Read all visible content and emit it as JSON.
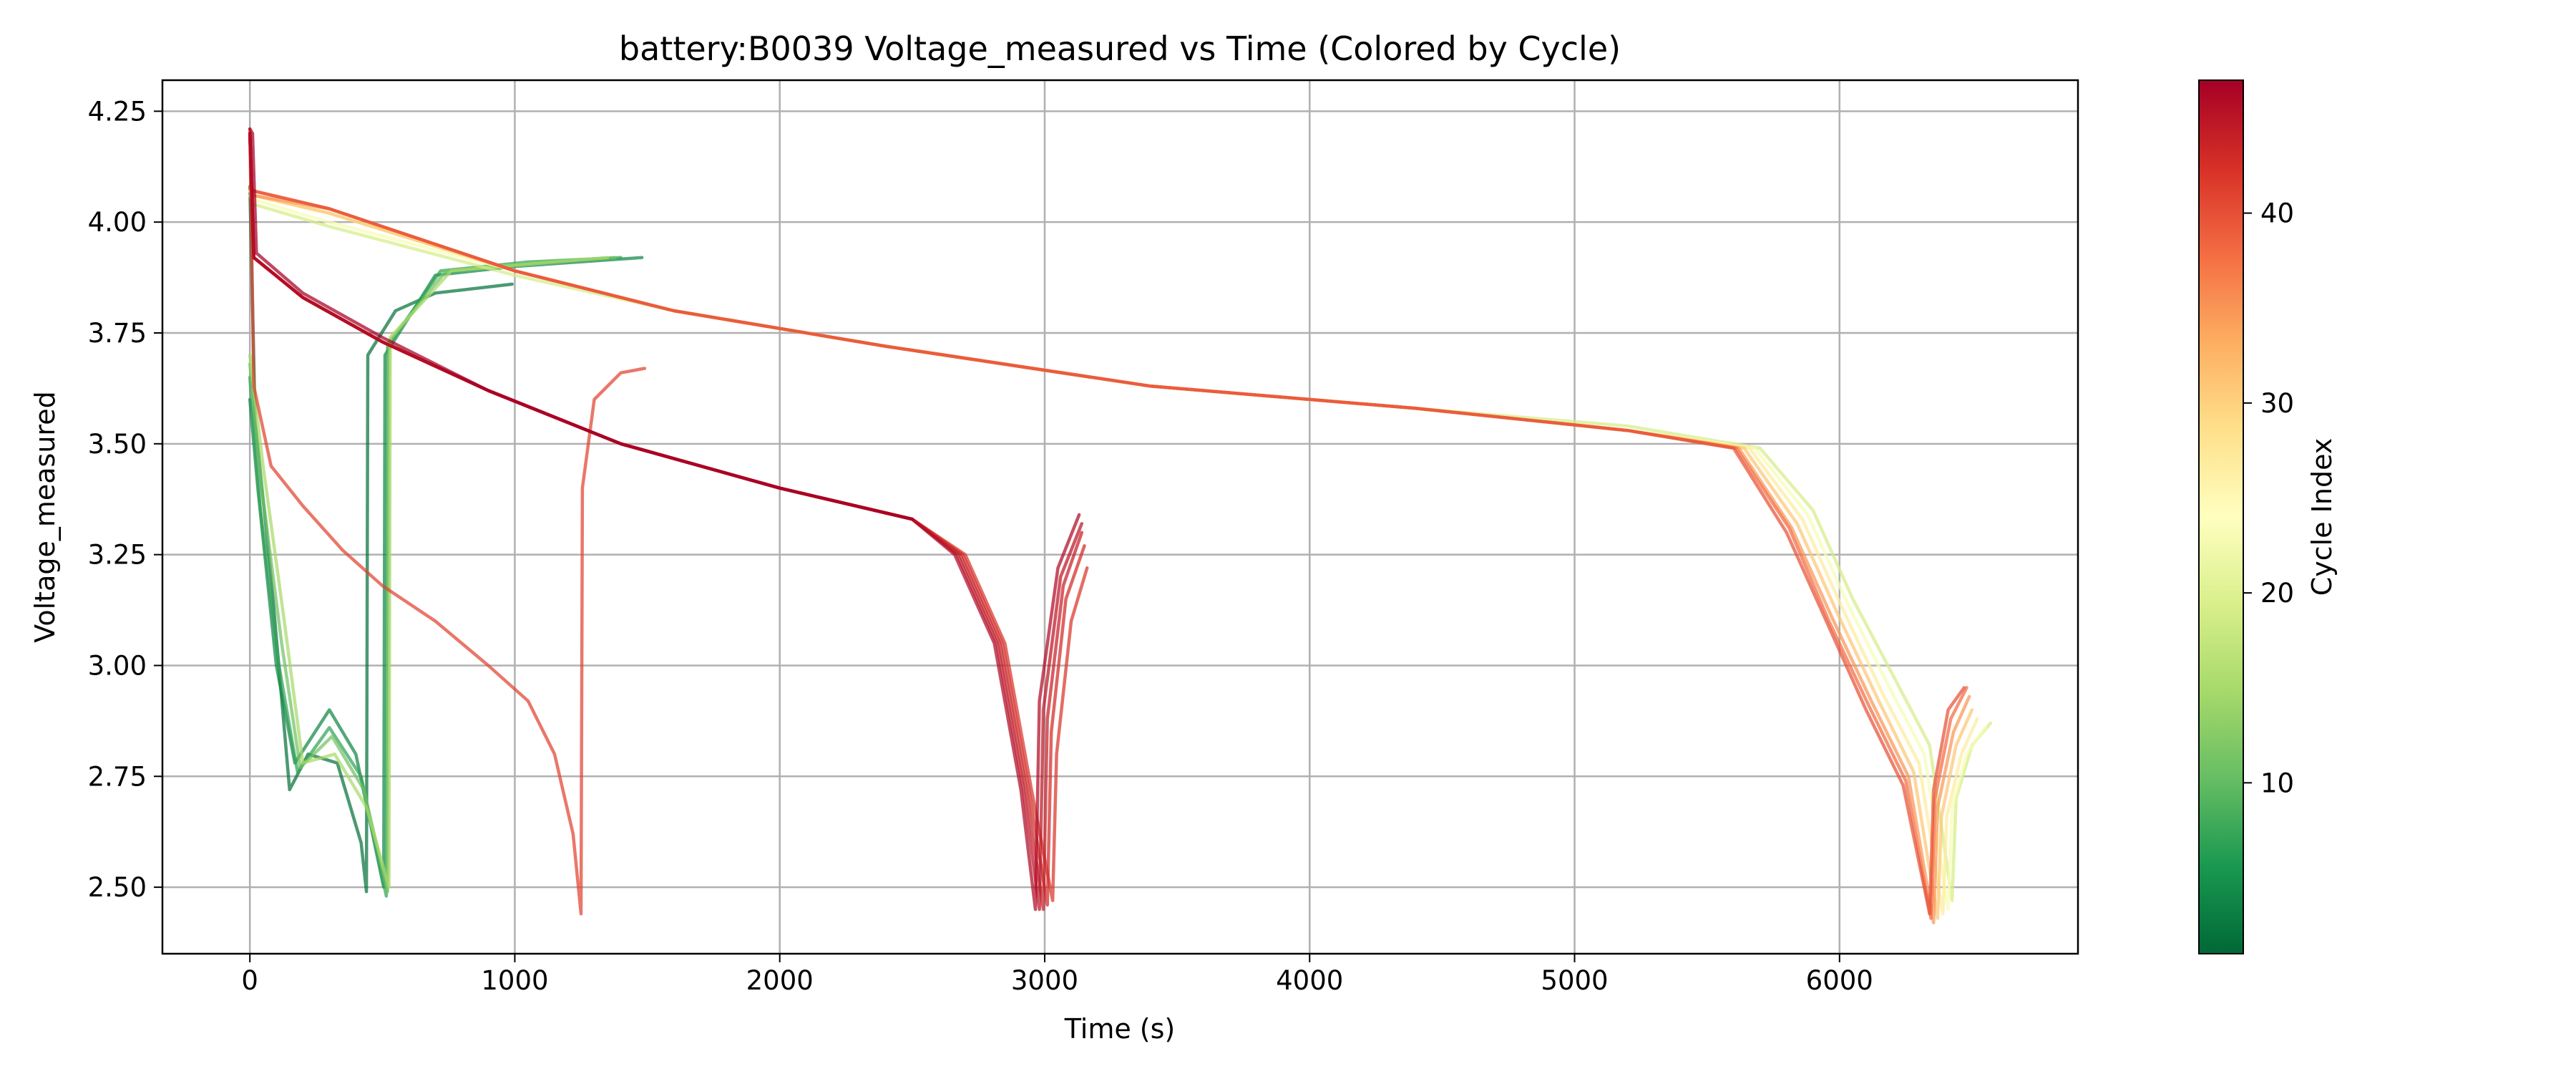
{
  "chart_data": {
    "type": "line",
    "title": "battery:B0039 Voltage_measured vs Time (Colored by Cycle)",
    "xlabel": "Time (s)",
    "ylabel": "Voltage_measured",
    "xlim": [
      -330,
      6900
    ],
    "ylim": [
      2.35,
      4.32
    ],
    "xticks": [
      0,
      1000,
      2000,
      3000,
      4000,
      5000,
      6000
    ],
    "yticks": [
      2.5,
      2.75,
      3.0,
      3.25,
      3.5,
      3.75,
      4.0,
      4.25
    ],
    "ytick_labels": [
      "2.50",
      "2.75",
      "3.00",
      "3.25",
      "3.50",
      "3.75",
      "4.00",
      "4.25"
    ],
    "grid": true,
    "colorbar": {
      "label": "Cycle Index",
      "colormap": "RdYlGn_r",
      "range": [
        1,
        47
      ],
      "ticks": [
        10,
        20,
        30,
        40
      ],
      "colors": [
        "#006837",
        "#1a9850",
        "#66bd63",
        "#a6d96a",
        "#d9ef8b",
        "#ffffbf",
        "#fee08b",
        "#fdae61",
        "#f46d43",
        "#d73027",
        "#a50026"
      ]
    },
    "series": [
      {
        "cycle": 2,
        "points": [
          [
            0,
            4.08
          ],
          [
            20,
            3.55
          ],
          [
            80,
            3.2
          ],
          [
            150,
            2.72
          ],
          [
            220,
            2.8
          ],
          [
            330,
            2.78
          ],
          [
            420,
            2.6
          ],
          [
            440,
            2.49
          ],
          [
            445,
            3.7
          ],
          [
            550,
            3.8
          ],
          [
            700,
            3.84
          ],
          [
            990,
            3.86
          ]
        ]
      },
      {
        "cycle": 4,
        "points": [
          [
            0,
            3.6
          ],
          [
            30,
            3.4
          ],
          [
            100,
            3.0
          ],
          [
            170,
            2.78
          ],
          [
            300,
            2.9
          ],
          [
            400,
            2.8
          ],
          [
            505,
            2.5
          ],
          [
            510,
            3.7
          ],
          [
            700,
            3.88
          ],
          [
            1000,
            3.9
          ],
          [
            1480,
            3.92
          ]
        ]
      },
      {
        "cycle": 7,
        "points": [
          [
            0,
            3.65
          ],
          [
            40,
            3.35
          ],
          [
            110,
            3.0
          ],
          [
            180,
            2.76
          ],
          [
            300,
            2.86
          ],
          [
            420,
            2.75
          ],
          [
            515,
            2.48
          ],
          [
            520,
            3.72
          ],
          [
            720,
            3.89
          ],
          [
            1050,
            3.91
          ],
          [
            1400,
            3.92
          ]
        ]
      },
      {
        "cycle": 11,
        "points": [
          [
            0,
            3.68
          ],
          [
            45,
            3.4
          ],
          [
            120,
            3.05
          ],
          [
            190,
            2.77
          ],
          [
            310,
            2.84
          ],
          [
            430,
            2.72
          ],
          [
            520,
            2.49
          ],
          [
            525,
            3.73
          ],
          [
            740,
            3.89
          ],
          [
            1100,
            3.91
          ],
          [
            1380,
            3.92
          ]
        ]
      },
      {
        "cycle": 15,
        "points": [
          [
            0,
            3.7
          ],
          [
            50,
            3.45
          ],
          [
            130,
            3.1
          ],
          [
            200,
            2.78
          ],
          [
            320,
            2.8
          ],
          [
            440,
            2.68
          ],
          [
            525,
            2.5
          ],
          [
            530,
            3.74
          ],
          [
            760,
            3.89
          ],
          [
            1150,
            3.91
          ],
          [
            1350,
            3.92
          ]
        ]
      },
      {
        "cycle": 19,
        "points": [
          [
            0,
            4.06
          ],
          [
            15,
            4.04
          ],
          [
            300,
            3.99
          ],
          [
            1000,
            3.88
          ],
          [
            1600,
            3.8
          ],
          [
            2400,
            3.72
          ],
          [
            3400,
            3.63
          ],
          [
            4400,
            3.58
          ],
          [
            5200,
            3.54
          ],
          [
            5700,
            3.49
          ],
          [
            5900,
            3.35
          ],
          [
            6050,
            3.15
          ],
          [
            6200,
            2.98
          ],
          [
            6340,
            2.82
          ],
          [
            6425,
            2.47
          ],
          [
            6440,
            2.7
          ],
          [
            6500,
            2.82
          ],
          [
            6570,
            2.87
          ]
        ]
      },
      {
        "cycle": 23,
        "points": [
          [
            0,
            4.07
          ],
          [
            15,
            4.05
          ],
          [
            300,
            4.0
          ],
          [
            1000,
            3.89
          ],
          [
            1600,
            3.8
          ],
          [
            2400,
            3.72
          ],
          [
            3400,
            3.63
          ],
          [
            4400,
            3.58
          ],
          [
            5200,
            3.53
          ],
          [
            5680,
            3.49
          ],
          [
            5880,
            3.34
          ],
          [
            6030,
            3.14
          ],
          [
            6180,
            2.96
          ],
          [
            6320,
            2.8
          ],
          [
            6410,
            2.45
          ],
          [
            6425,
            2.68
          ],
          [
            6480,
            2.8
          ],
          [
            6550,
            2.86
          ]
        ]
      },
      {
        "cycle": 27,
        "points": [
          [
            0,
            4.07
          ],
          [
            15,
            4.06
          ],
          [
            300,
            4.02
          ],
          [
            1000,
            3.89
          ],
          [
            1600,
            3.8
          ],
          [
            2400,
            3.72
          ],
          [
            3400,
            3.63
          ],
          [
            4400,
            3.58
          ],
          [
            5200,
            3.53
          ],
          [
            5660,
            3.49
          ],
          [
            5860,
            3.33
          ],
          [
            6010,
            3.13
          ],
          [
            6160,
            2.94
          ],
          [
            6300,
            2.78
          ],
          [
            6390,
            2.44
          ],
          [
            6405,
            2.66
          ],
          [
            6460,
            2.8
          ],
          [
            6520,
            2.88
          ]
        ]
      },
      {
        "cycle": 31,
        "points": [
          [
            0,
            4.08
          ],
          [
            15,
            4.06
          ],
          [
            300,
            4.02
          ],
          [
            1000,
            3.89
          ],
          [
            1600,
            3.8
          ],
          [
            2400,
            3.72
          ],
          [
            3400,
            3.63
          ],
          [
            4400,
            3.58
          ],
          [
            5200,
            3.53
          ],
          [
            5640,
            3.49
          ],
          [
            5840,
            3.32
          ],
          [
            5990,
            3.12
          ],
          [
            6140,
            2.93
          ],
          [
            6280,
            2.76
          ],
          [
            6370,
            2.43
          ],
          [
            6385,
            2.66
          ],
          [
            6440,
            2.82
          ],
          [
            6500,
            2.9
          ]
        ]
      },
      {
        "cycle": 35,
        "points": [
          [
            0,
            4.08
          ],
          [
            15,
            4.06
          ],
          [
            300,
            4.03
          ],
          [
            1000,
            3.89
          ],
          [
            1600,
            3.8
          ],
          [
            2400,
            3.72
          ],
          [
            3400,
            3.63
          ],
          [
            4400,
            3.58
          ],
          [
            5200,
            3.53
          ],
          [
            5620,
            3.49
          ],
          [
            5820,
            3.31
          ],
          [
            5970,
            3.11
          ],
          [
            6120,
            2.92
          ],
          [
            6260,
            2.75
          ],
          [
            6355,
            2.42
          ],
          [
            6370,
            2.68
          ],
          [
            6430,
            2.85
          ],
          [
            6490,
            2.93
          ]
        ]
      },
      {
        "cycle": 38,
        "points": [
          [
            0,
            4.08
          ],
          [
            15,
            4.07
          ],
          [
            300,
            4.03
          ],
          [
            1000,
            3.89
          ],
          [
            1600,
            3.8
          ],
          [
            2400,
            3.72
          ],
          [
            3400,
            3.63
          ],
          [
            4400,
            3.58
          ],
          [
            5200,
            3.53
          ],
          [
            5610,
            3.49
          ],
          [
            5810,
            3.31
          ],
          [
            5960,
            3.1
          ],
          [
            6110,
            2.91
          ],
          [
            6250,
            2.74
          ],
          [
            6345,
            2.43
          ],
          [
            6360,
            2.7
          ],
          [
            6420,
            2.88
          ],
          [
            6480,
            2.95
          ]
        ]
      },
      {
        "cycle": 40,
        "points": [
          [
            0,
            4.08
          ],
          [
            15,
            4.07
          ],
          [
            300,
            4.03
          ],
          [
            1000,
            3.89
          ],
          [
            1600,
            3.8
          ],
          [
            2400,
            3.72
          ],
          [
            3400,
            3.63
          ],
          [
            4400,
            3.58
          ],
          [
            5200,
            3.53
          ],
          [
            5600,
            3.49
          ],
          [
            5800,
            3.3
          ],
          [
            5950,
            3.1
          ],
          [
            6100,
            2.9
          ],
          [
            6240,
            2.73
          ],
          [
            6340,
            2.44
          ],
          [
            6355,
            2.72
          ],
          [
            6410,
            2.9
          ],
          [
            6470,
            2.95
          ]
        ]
      },
      {
        "cycle": 41,
        "points": [
          [
            0,
            4.21
          ],
          [
            15,
            3.63
          ],
          [
            80,
            3.45
          ],
          [
            200,
            3.36
          ],
          [
            350,
            3.26
          ],
          [
            500,
            3.18
          ],
          [
            700,
            3.1
          ],
          [
            900,
            3.0
          ],
          [
            1050,
            2.92
          ],
          [
            1150,
            2.8
          ],
          [
            1220,
            2.62
          ],
          [
            1250,
            2.44
          ],
          [
            1255,
            3.4
          ],
          [
            1300,
            3.6
          ],
          [
            1400,
            3.66
          ],
          [
            1490,
            3.67
          ]
        ]
      },
      {
        "cycle": 42,
        "points": [
          [
            0,
            4.2
          ],
          [
            15,
            3.92
          ],
          [
            200,
            3.83
          ],
          [
            500,
            3.73
          ],
          [
            900,
            3.62
          ],
          [
            1400,
            3.5
          ],
          [
            2000,
            3.4
          ],
          [
            2500,
            3.33
          ],
          [
            2700,
            3.25
          ],
          [
            2850,
            3.05
          ],
          [
            2950,
            2.72
          ],
          [
            3030,
            2.47
          ],
          [
            3045,
            2.8
          ],
          [
            3100,
            3.1
          ],
          [
            3160,
            3.22
          ]
        ]
      },
      {
        "cycle": 43,
        "points": [
          [
            0,
            4.2
          ],
          [
            15,
            3.92
          ],
          [
            200,
            3.83
          ],
          [
            500,
            3.73
          ],
          [
            900,
            3.62
          ],
          [
            1400,
            3.5
          ],
          [
            2000,
            3.4
          ],
          [
            2500,
            3.33
          ],
          [
            2690,
            3.25
          ],
          [
            2840,
            3.05
          ],
          [
            2940,
            2.72
          ],
          [
            3010,
            2.46
          ],
          [
            3025,
            2.85
          ],
          [
            3080,
            3.15
          ],
          [
            3150,
            3.27
          ]
        ]
      },
      {
        "cycle": 44,
        "points": [
          [
            0,
            4.2
          ],
          [
            15,
            3.92
          ],
          [
            200,
            3.83
          ],
          [
            500,
            3.73
          ],
          [
            900,
            3.62
          ],
          [
            1400,
            3.5
          ],
          [
            2000,
            3.4
          ],
          [
            2500,
            3.33
          ],
          [
            2680,
            3.25
          ],
          [
            2830,
            3.05
          ],
          [
            2930,
            2.72
          ],
          [
            2995,
            2.45
          ],
          [
            3010,
            2.88
          ],
          [
            3070,
            3.18
          ],
          [
            3140,
            3.3
          ]
        ]
      },
      {
        "cycle": 45,
        "points": [
          [
            0,
            4.2
          ],
          [
            15,
            3.92
          ],
          [
            200,
            3.83
          ],
          [
            500,
            3.73
          ],
          [
            900,
            3.62
          ],
          [
            1400,
            3.5
          ],
          [
            2000,
            3.4
          ],
          [
            2500,
            3.33
          ],
          [
            2670,
            3.25
          ],
          [
            2820,
            3.05
          ],
          [
            2920,
            2.72
          ],
          [
            2980,
            2.45
          ],
          [
            2995,
            2.9
          ],
          [
            3060,
            3.2
          ],
          [
            3140,
            3.32
          ]
        ]
      },
      {
        "cycle": 46,
        "points": [
          [
            0,
            4.2
          ],
          [
            15,
            3.92
          ],
          [
            200,
            3.83
          ],
          [
            500,
            3.73
          ],
          [
            900,
            3.62
          ],
          [
            1400,
            3.5
          ],
          [
            2000,
            3.4
          ],
          [
            2500,
            3.33
          ],
          [
            2660,
            3.25
          ],
          [
            2810,
            3.05
          ],
          [
            2910,
            2.72
          ],
          [
            2965,
            2.45
          ],
          [
            2980,
            2.92
          ],
          [
            3050,
            3.22
          ],
          [
            3130,
            3.34
          ]
        ]
      },
      {
        "cycle": 47,
        "points": [
          [
            0,
            4.21
          ],
          [
            10,
            4.2
          ],
          [
            25,
            3.93
          ],
          [
            200,
            3.84
          ],
          [
            500,
            3.74
          ],
          [
            900,
            3.62
          ],
          [
            1400,
            3.5
          ],
          [
            2000,
            3.4
          ],
          [
            2500,
            3.33
          ]
        ]
      }
    ]
  }
}
